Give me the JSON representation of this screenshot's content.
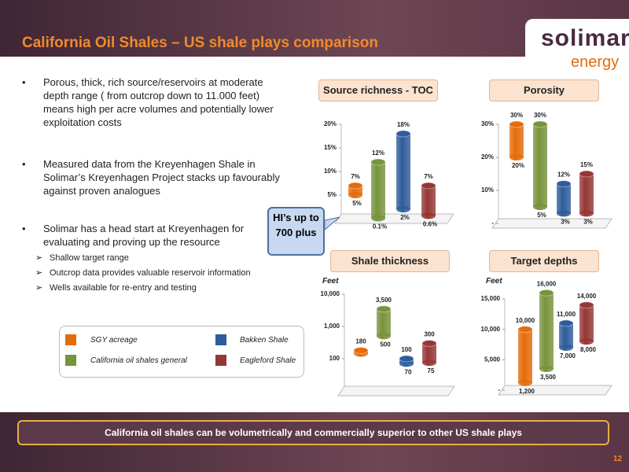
{
  "header": {
    "title": "California Oil Shales – US shale plays comparison",
    "logo_top": "solimar",
    "logo_bottom": "energy"
  },
  "bullets": [
    {
      "text": "Porous, thick, rich source/reservoirs at moderate depth range ( from outcrop down to 11.000 feet) means high per acre volumes and potentially lower exploitation costs"
    },
    {
      "text": "Measured data from the Kreyenhagen Shale in Solimar’s Kreyenhagen Project stacks up favourably against proven analogues"
    },
    {
      "text": "Solimar has a head start at Kreyenhagen for evaluating and proving up the resource",
      "sub": [
        "Shallow target range",
        "Outcrop data provides valuable reservoir information",
        "Wells available for re-entry and testing"
      ]
    }
  ],
  "callout": "HI’s  up to 700 plus",
  "legend": [
    {
      "name": "SGY acreage",
      "color": "#e46c0a"
    },
    {
      "name": "California oil shales general",
      "color": "#77933c"
    },
    {
      "name": "Bakken Shale",
      "color": "#2f5c9a"
    },
    {
      "name": "Eagleford Shale",
      "color": "#953735"
    }
  ],
  "chart_data": [
    {
      "type": "range-bar",
      "title": "Source richness - TOC",
      "high": [
        7,
        12,
        18,
        7
      ],
      "high_labels": [
        "7%",
        "12%",
        "18%",
        "7%"
      ],
      "low": [
        5,
        0.1,
        2,
        0.6
      ],
      "low_labels": [
        "5%",
        "0.1%",
        "2%",
        "0.6%"
      ],
      "ylim": [
        0,
        20
      ],
      "yticks": [
        {
          "value": 5,
          "label": "5%"
        },
        {
          "value": 10,
          "label": "10%"
        },
        {
          "value": 15,
          "label": "15%"
        },
        {
          "value": 20,
          "label": "20%"
        }
      ]
    },
    {
      "type": "range-bar",
      "title": "Porosity",
      "high": [
        30,
        30,
        12,
        15
      ],
      "high_labels": [
        "30%",
        "30%",
        "12%",
        "15%"
      ],
      "low": [
        20,
        5,
        3,
        3
      ],
      "low_labels": [
        "20%",
        "5%",
        "3%",
        "3%"
      ],
      "ylim": [
        0,
        30
      ],
      "yticks": [
        {
          "value": 0,
          "label": "-"
        },
        {
          "value": 10,
          "label": "10%"
        },
        {
          "value": 20,
          "label": "20%"
        },
        {
          "value": 30,
          "label": "30%"
        }
      ]
    },
    {
      "type": "range-bar",
      "title": "Shale thickness",
      "y_label": "Feet",
      "log_scale": true,
      "high": [
        180,
        3500,
        100,
        300
      ],
      "high_labels": [
        "180",
        "3,500",
        "100",
        "300"
      ],
      "low": [
        null,
        500,
        70,
        75
      ],
      "low_labels": [
        null,
        "500",
        "70",
        "75"
      ],
      "ylim": [
        10,
        10000
      ],
      "yticks": [
        100,
        {
          "value": 1000,
          "label": "1,000"
        },
        {
          "value": 10000,
          "label": "10,000"
        }
      ]
    },
    {
      "type": "range-bar",
      "title": "Target depths",
      "y_label": "Feet",
      "high": [
        10000,
        16000,
        11000,
        14000
      ],
      "high_labels": [
        "10,000",
        "16,000",
        "11,000",
        "14,000"
      ],
      "low": [
        1200,
        3500,
        7000,
        8000
      ],
      "low_labels": [
        "1,200",
        "3,500",
        "7,000",
        "8,000"
      ],
      "ylim": [
        0,
        15000
      ],
      "yticks": [
        {
          "value": 0,
          "label": "-"
        },
        {
          "value": 5000,
          "label": "5,000"
        },
        {
          "value": 10000,
          "label": "10,000"
        },
        {
          "value": 15000,
          "label": "15,000"
        }
      ]
    }
  ],
  "footer": "California oil shales can be volumetrically and commercially superior to other US shale plays",
  "page_number": "12"
}
